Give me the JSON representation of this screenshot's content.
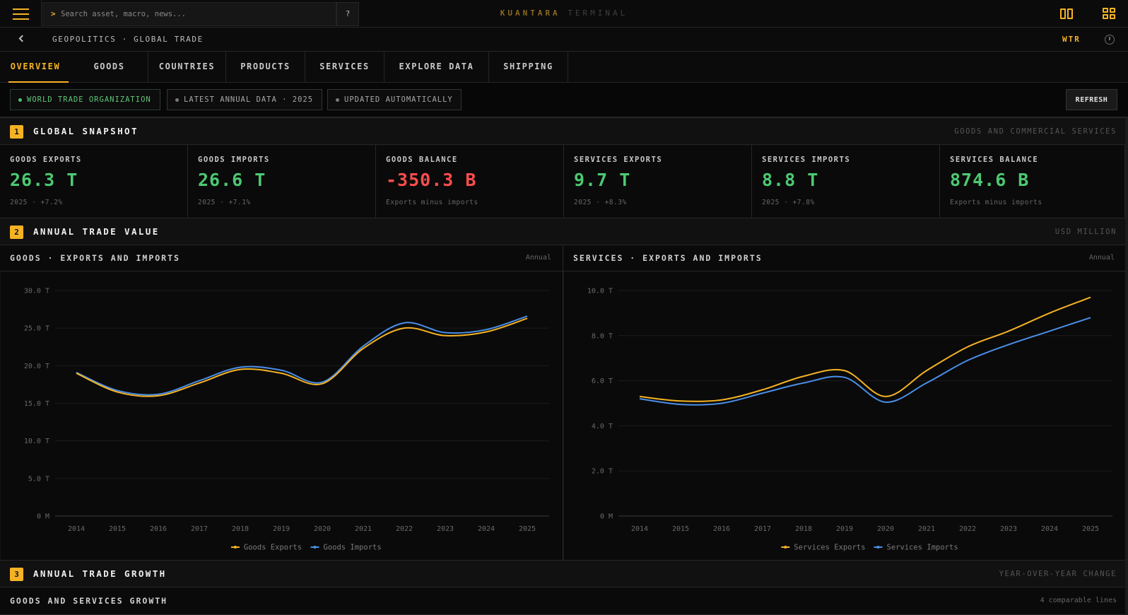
{
  "header": {
    "search_placeholder": "Search asset, macro, news...",
    "help_label": "?",
    "brand_primary": "KUANTARA",
    "brand_secondary": "TERMINAL"
  },
  "breadcrumb": {
    "path": "GEOPOLITICS · GLOBAL TRADE",
    "code": "WTR"
  },
  "tabs": [
    {
      "label": "OVERVIEW",
      "active": true
    },
    {
      "label": "GOODS"
    },
    {
      "label": "COUNTRIES"
    },
    {
      "label": "PRODUCTS"
    },
    {
      "label": "SERVICES"
    },
    {
      "label": "EXPLORE DATA"
    },
    {
      "label": "SHIPPING"
    }
  ],
  "chips": [
    {
      "label": "WORLD TRADE ORGANIZATION",
      "status": "green"
    },
    {
      "label": "LATEST ANNUAL DATA · 2025"
    },
    {
      "label": "UPDATED AUTOMATICALLY"
    }
  ],
  "refresh_label": "REFRESH",
  "sections": [
    {
      "num": "1",
      "title": "GLOBAL SNAPSHOT",
      "note": "GOODS AND COMMERCIAL SERVICES"
    },
    {
      "num": "2",
      "title": "ANNUAL TRADE VALUE",
      "note": "USD MILLION"
    },
    {
      "num": "3",
      "title": "ANNUAL TRADE GROWTH",
      "note": "YEAR-OVER-YEAR CHANGE"
    }
  ],
  "kpis": [
    {
      "label": "GOODS EXPORTS",
      "value": "26.3 T",
      "sub": "2025 · +7.2%"
    },
    {
      "label": "GOODS IMPORTS",
      "value": "26.6 T",
      "sub": "2025 · +7.1%"
    },
    {
      "label": "GOODS BALANCE",
      "value": "-350.3 B",
      "sub": "Exports minus imports"
    },
    {
      "label": "SERVICES EXPORTS",
      "value": "9.7 T",
      "sub": "2025 · +8.3%"
    },
    {
      "label": "SERVICES IMPORTS",
      "value": "8.8 T",
      "sub": "2025 · +7.8%"
    },
    {
      "label": "SERVICES BALANCE",
      "value": "874.6 B",
      "sub": "Exports minus imports"
    }
  ],
  "panels": [
    {
      "title": "GOODS · EXPORTS AND IMPORTS",
      "freq": "Annual"
    },
    {
      "title": "SERVICES · EXPORTS AND IMPORTS",
      "freq": "Annual"
    }
  ],
  "growth": {
    "title": "GOODS AND SERVICES GROWTH",
    "note": "4 comparable lines"
  },
  "colors": {
    "accent": "#f5b324",
    "exports": "#f5b324",
    "imports": "#4a8fe8",
    "positive": "#4cc972",
    "negative": "#ff4d4d"
  },
  "chart_data": [
    {
      "type": "line",
      "categories": [
        "2014",
        "2015",
        "2016",
        "2017",
        "2018",
        "2019",
        "2020",
        "2021",
        "2022",
        "2023",
        "2024",
        "2025"
      ],
      "ylim": [
        0,
        30
      ],
      "yticks": [
        0,
        5,
        10,
        15,
        20,
        25,
        30
      ],
      "ytick_labels": [
        "0 M",
        "5.0 T",
        "10.0 T",
        "15.0 T",
        "20.0 T",
        "25.0 T",
        "30.0 T"
      ],
      "series": [
        {
          "name": "Goods Exports",
          "values": [
            19.0,
            16.5,
            16.0,
            17.7,
            19.5,
            19.0,
            17.6,
            22.3,
            25.0,
            24.0,
            24.5,
            26.3
          ]
        },
        {
          "name": "Goods Imports",
          "values": [
            19.1,
            16.7,
            16.2,
            18.0,
            19.8,
            19.4,
            17.8,
            22.6,
            25.7,
            24.4,
            24.8,
            26.6
          ]
        }
      ],
      "legend": "bottom-center",
      "grid": true
    },
    {
      "type": "line",
      "categories": [
        "2014",
        "2015",
        "2016",
        "2017",
        "2018",
        "2019",
        "2020",
        "2021",
        "2022",
        "2023",
        "2024",
        "2025"
      ],
      "ylim": [
        0,
        10
      ],
      "yticks": [
        0,
        2,
        4,
        6,
        8,
        10
      ],
      "ytick_labels": [
        "0 M",
        "2.0 T",
        "4.0 T",
        "6.0 T",
        "8.0 T",
        "10.0 T"
      ],
      "series": [
        {
          "name": "Services Exports",
          "values": [
            5.3,
            5.1,
            5.15,
            5.6,
            6.2,
            6.45,
            5.3,
            6.45,
            7.5,
            8.2,
            9.0,
            9.7
          ]
        },
        {
          "name": "Services Imports",
          "values": [
            5.2,
            4.95,
            5.0,
            5.45,
            5.9,
            6.15,
            5.05,
            5.9,
            6.9,
            7.6,
            8.2,
            8.8
          ]
        }
      ],
      "legend": "bottom-center",
      "grid": true
    }
  ]
}
